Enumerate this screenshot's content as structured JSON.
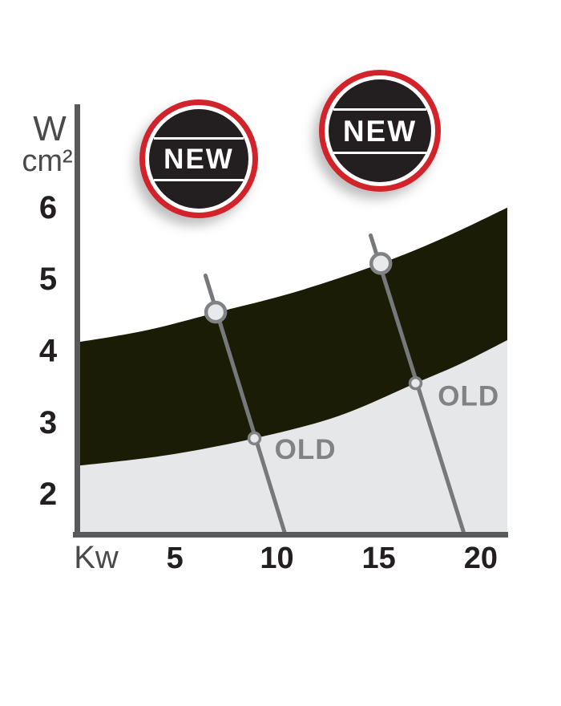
{
  "colors": {
    "page_bg": "#FFFFFF",
    "badge_red": "#D2232A",
    "badge_black": "#231F20",
    "badge_text": "#FFFFFF"
  },
  "badges": [
    {
      "label": "NEW"
    },
    {
      "label": "NEW"
    }
  ],
  "chart_data": {
    "type": "area",
    "title": "",
    "xlabel": "Kw",
    "ylabel": "W/cm²",
    "ylabel_lines": [
      "W",
      "cm²"
    ],
    "x_ticks": [
      5,
      10,
      15,
      20
    ],
    "y_ticks": [
      2,
      3,
      4,
      5,
      6
    ],
    "x_range": [
      0,
      21.3
    ],
    "y_range": [
      1.42,
      7.43
    ],
    "grid": false,
    "legend": "none",
    "series": [
      {
        "name": "NEW",
        "type": "band",
        "upper": [
          [
            0,
            4.1
          ],
          [
            3.5,
            4.27
          ],
          [
            7.1,
            4.53
          ],
          [
            11,
            4.82
          ],
          [
            15.1,
            5.21
          ],
          [
            18.2,
            5.57
          ],
          [
            21.3,
            5.99
          ]
        ],
        "lower": [
          [
            0,
            2.38
          ],
          [
            4.5,
            2.53
          ],
          [
            8.9,
            2.77
          ],
          [
            13,
            3.08
          ],
          [
            16.8,
            3.54
          ],
          [
            19,
            3.81
          ],
          [
            21.3,
            4.14
          ]
        ]
      },
      {
        "name": "OLD",
        "type": "band",
        "upper": [
          [
            0,
            2.38
          ],
          [
            4.5,
            2.53
          ],
          [
            8.9,
            2.77
          ],
          [
            13,
            3.08
          ],
          [
            16.8,
            3.54
          ],
          [
            19,
            3.81
          ],
          [
            21.3,
            4.14
          ]
        ],
        "lower": [
          [
            0,
            1.42
          ],
          [
            21.3,
            1.42
          ]
        ]
      }
    ],
    "callouts": [
      {
        "line": [
          [
            6.5,
            5.04
          ],
          [
            10.4,
            1.44
          ]
        ],
        "new_marker": [
          7.0,
          4.53
        ],
        "old_marker": [
          8.9,
          2.77
        ],
        "label": "OLD",
        "label_pos": [
          11.4,
          2.62
        ]
      },
      {
        "line": [
          [
            14.6,
            5.6
          ],
          [
            19.2,
            1.42
          ]
        ],
        "new_marker": [
          15.1,
          5.21
        ],
        "old_marker": [
          16.8,
          3.54
        ],
        "label": "OLD",
        "label_pos": [
          19.4,
          3.36
        ]
      }
    ],
    "colors": {
      "axis": "#58595B",
      "tick_label": "#231F20",
      "unit_label": "#4A4A4C",
      "new_band": "#1A1C05",
      "old_band": "#E6E7E8",
      "callout_line": "#77787B",
      "marker_fill": "#E8E9EA",
      "marker_stroke": "#808285",
      "old_label": "#808285"
    }
  }
}
